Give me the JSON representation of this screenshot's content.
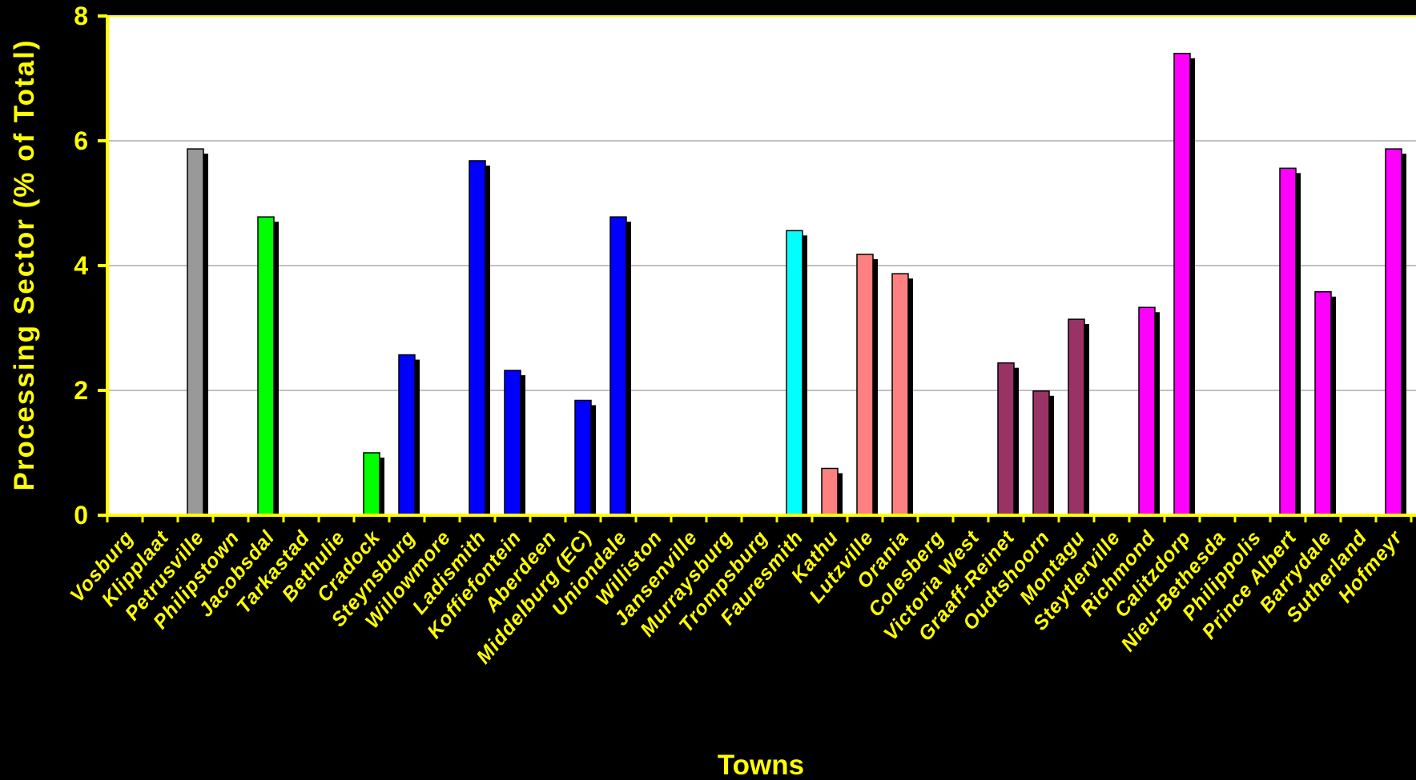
{
  "chart_data": {
    "type": "bar",
    "title": "",
    "xlabel": "Towns",
    "ylabel": "Processing Sector (% of Total)",
    "ylim": [
      0,
      8
    ],
    "yticks": [
      0,
      2,
      4,
      6,
      8
    ],
    "grid": true,
    "legend": "none",
    "categories": [
      "Vosburg",
      "Klipplaat",
      "Petrusville",
      "Philipstown",
      "Jacobsdal",
      "Tarkastad",
      "Bethulie",
      "Cradock",
      "Steynsburg",
      "Willowmore",
      "Ladismith",
      "Koffiefontein",
      "Aberdeen",
      "Middelburg (EC)",
      "Uniondale",
      "Williston",
      "Jansenville",
      "Murraysburg",
      "Trompsburg",
      "Fauresmith",
      "Kathu",
      "Lutzville",
      "Orania",
      "Colesberg",
      "Victoria West",
      "Graaff-Reinet",
      "Oudtshoorn",
      "Montagu",
      "Steytlerville",
      "Richmond",
      "Calitzdorp",
      "Nieu-Bethesda",
      "Philippolis",
      "Prince Albert",
      "Barrydale",
      "Sutherland",
      "Hofmeyr"
    ],
    "values": [
      0,
      0,
      5.87,
      0,
      4.78,
      0,
      0,
      1.0,
      2.57,
      0,
      5.68,
      2.32,
      0,
      1.84,
      4.78,
      0,
      0,
      0,
      0,
      4.56,
      0.75,
      4.18,
      3.87,
      0,
      0,
      2.44,
      1.99,
      3.14,
      0,
      3.33,
      7.4,
      0,
      0,
      5.56,
      3.58,
      0,
      5.87
    ],
    "colors": [
      "",
      "",
      "#999999",
      "",
      "#00ff00",
      "",
      "",
      "#00ff00",
      "#0000ff",
      "",
      "#0000ff",
      "#0000ff",
      "",
      "#0000ff",
      "#0000ff",
      "",
      "",
      "",
      "",
      "#00ffff",
      "#ff8080",
      "#ff8080",
      "#ff8080",
      "",
      "",
      "#993366",
      "#993366",
      "#993366",
      "",
      "#ff00ff",
      "#ff00ff",
      "",
      "",
      "#ff00ff",
      "#ff00ff",
      "",
      "#ff00ff"
    ]
  },
  "colors": {
    "background": "#000000",
    "plot_background": "#ffffff",
    "axis": "#ffff00",
    "text": "#ffff00",
    "gridline": "#808080",
    "bar_shadow": "#000000"
  }
}
